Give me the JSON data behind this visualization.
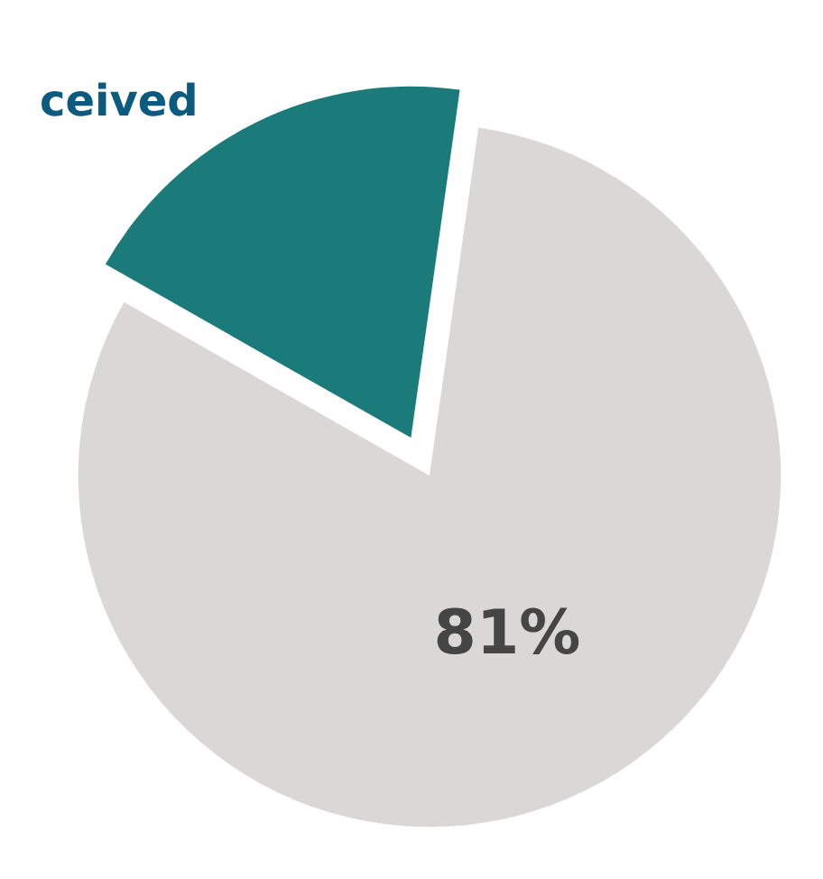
{
  "chart_data": {
    "type": "pie",
    "categories": [
      null,
      null
    ],
    "values": [
      81,
      19
    ],
    "colors": [
      "#d9d8d7",
      "#1b7b7a"
    ],
    "value_labels": [
      "81%",
      null
    ],
    "annotations": [
      "ceived"
    ],
    "legend": false
  }
}
